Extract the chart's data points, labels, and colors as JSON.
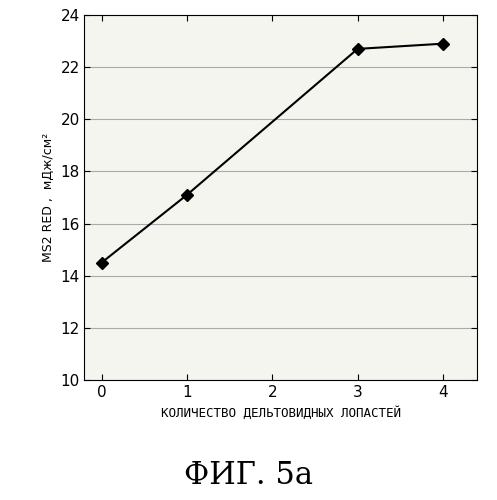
{
  "x": [
    0,
    1,
    3,
    4
  ],
  "y": [
    14.5,
    17.1,
    22.7,
    22.9
  ],
  "xlabel": "КОЛИЧЕСТВО ДЕЛЬТОВИДНЫХ ЛОПАСТЕЙ",
  "ylabel": "MS2 RED ,  мДж/см²",
  "title": "ФИГ. 5а",
  "xlim": [
    -0.2,
    4.4
  ],
  "ylim": [
    10,
    24
  ],
  "xticks": [
    0,
    1,
    2,
    3,
    4
  ],
  "yticks": [
    10,
    12,
    14,
    16,
    18,
    20,
    22,
    24
  ],
  "line_color": "#000000",
  "marker": "D",
  "marker_color": "#000000",
  "marker_size": 6,
  "line_width": 1.5,
  "plot_bg_color": "#f5f5f0",
  "grid_color": "#aaaaaa",
  "fig_bg": "#ffffff",
  "tick_fontsize": 11,
  "label_fontsize": 9,
  "title_fontsize": 22
}
